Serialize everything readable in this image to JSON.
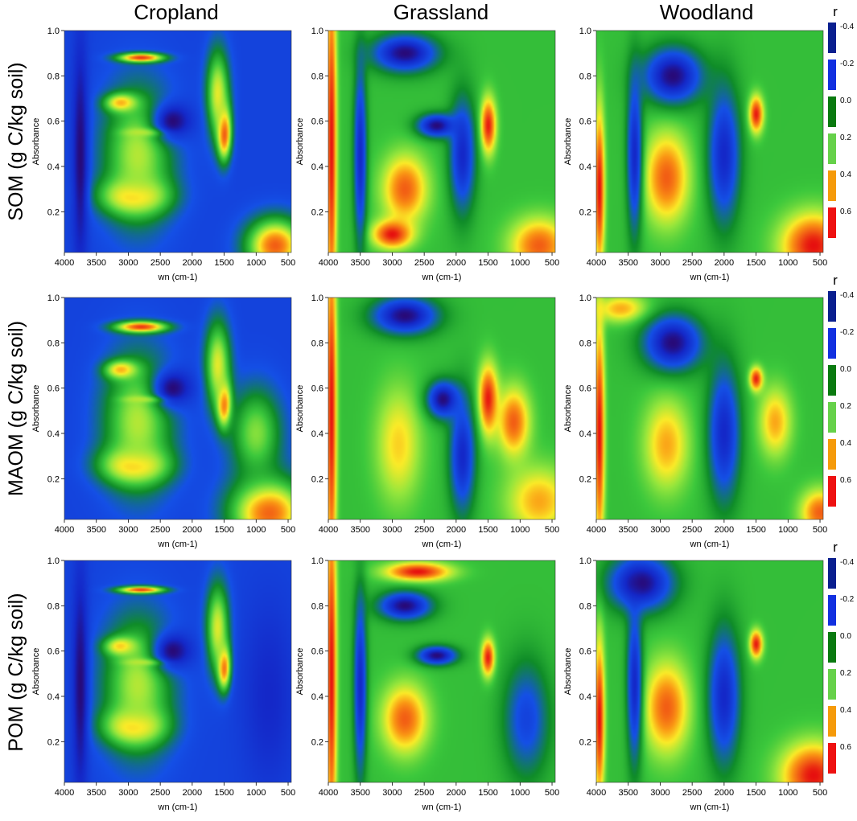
{
  "figure": {
    "column_titles": [
      "Cropland",
      "Grassland",
      "Woodland"
    ],
    "row_titles": [
      "SOM (g C/kg soil)",
      "MAOM (g C/kg soil)",
      "POM (g C/kg soil)"
    ],
    "colorbar": {
      "title": "r",
      "tick_labels": [
        "-0.4",
        "-0.2",
        "0.0",
        "0.2",
        "0.4",
        "0.6"
      ],
      "colors": [
        "#0a1f8f",
        "#1230e0",
        "#0a7a10",
        "#66d14a",
        "#f59a0a",
        "#ee1111"
      ]
    }
  },
  "chart_data": [
    {
      "type": "heatmap",
      "panel": "SOM-Cropland",
      "title": "",
      "xlabel": "wn (cm-1)",
      "ylabel": "Absorbance",
      "xlim": [
        4000,
        450
      ],
      "ylim": [
        0.02,
        1.0
      ],
      "x_ticks": [
        4000,
        3500,
        3000,
        2500,
        2000,
        1500,
        1000,
        500
      ],
      "x_tick_labels": [
        "4000",
        "3500",
        "3000",
        "2500",
        "2000",
        "1500",
        "1000",
        "500"
      ],
      "y_ticks": [
        0.2,
        0.4,
        0.6,
        0.8,
        1.0
      ],
      "y_tick_labels": [
        "0.2",
        "0.4",
        "0.6",
        "0.8",
        "1.0"
      ],
      "value_range": [
        -0.4,
        0.6
      ],
      "background_r": -0.2,
      "features": [
        {
          "x": 1500,
          "y": 0.55,
          "sx": 110,
          "sy": 0.12,
          "r": 0.6
        },
        {
          "x": 1600,
          "y": 0.72,
          "sx": 180,
          "sy": 0.2,
          "r": 0.3
        },
        {
          "x": 2800,
          "y": 0.88,
          "sx": 350,
          "sy": 0.02,
          "r": 0.6
        },
        {
          "x": 2700,
          "y": 0.55,
          "sx": 300,
          "sy": 0.018,
          "r": 0.6
        },
        {
          "x": 2900,
          "y": 0.27,
          "sx": 500,
          "sy": 0.08,
          "r": 0.5
        },
        {
          "x": 3100,
          "y": 0.68,
          "sx": 250,
          "sy": 0.04,
          "r": 0.5
        },
        {
          "x": 2850,
          "y": 0.45,
          "sx": 550,
          "sy": 0.3,
          "r": 0.25
        },
        {
          "x": 2300,
          "y": 0.6,
          "sx": 300,
          "sy": 0.08,
          "r": -0.4
        },
        {
          "x": 700,
          "y": 0.05,
          "sx": 450,
          "sy": 0.12,
          "r": 0.5
        },
        {
          "x": 3750,
          "y": 0.45,
          "sx": 120,
          "sy": 0.5,
          "r": -0.4
        }
      ]
    },
    {
      "type": "heatmap",
      "panel": "SOM-Grassland",
      "title": "",
      "xlabel": "wn (cm-1)",
      "ylabel": "Absorbance",
      "xlim": [
        4000,
        450
      ],
      "ylim": [
        0.02,
        1.0
      ],
      "x_ticks": [
        4000,
        3500,
        3000,
        2500,
        2000,
        1500,
        1000,
        500
      ],
      "x_tick_labels": [
        "4000",
        "3500",
        "3000",
        "2500",
        "2000",
        "1500",
        "1000",
        "500"
      ],
      "y_ticks": [
        0.2,
        0.4,
        0.6,
        0.8,
        1.0
      ],
      "y_tick_labels": [
        "0.2",
        "0.4",
        "0.6",
        "0.8",
        "1.0"
      ],
      "value_range": [
        -0.4,
        0.6
      ],
      "background_r": 0.1,
      "features": [
        {
          "x": 3950,
          "y": 0.5,
          "sx": 80,
          "sy": 0.8,
          "r": 0.6
        },
        {
          "x": 2800,
          "y": 0.3,
          "sx": 350,
          "sy": 0.15,
          "r": 0.5
        },
        {
          "x": 1500,
          "y": 0.58,
          "sx": 120,
          "sy": 0.12,
          "r": 0.6
        },
        {
          "x": 3000,
          "y": 0.1,
          "sx": 300,
          "sy": 0.06,
          "r": 0.6
        },
        {
          "x": 2800,
          "y": 0.9,
          "sx": 500,
          "sy": 0.08,
          "r": -0.4
        },
        {
          "x": 2300,
          "y": 0.58,
          "sx": 300,
          "sy": 0.05,
          "r": -0.4
        },
        {
          "x": 3500,
          "y": 0.45,
          "sx": 100,
          "sy": 0.4,
          "r": -0.3
        },
        {
          "x": 1900,
          "y": 0.45,
          "sx": 200,
          "sy": 0.25,
          "r": -0.3
        },
        {
          "x": 700,
          "y": 0.05,
          "sx": 450,
          "sy": 0.12,
          "r": 0.5
        }
      ]
    },
    {
      "type": "heatmap",
      "panel": "SOM-Woodland",
      "title": "",
      "xlabel": "wn (cm-1)",
      "ylabel": "Absorbance",
      "xlim": [
        4000,
        450
      ],
      "ylim": [
        0.02,
        1.0
      ],
      "x_ticks": [
        4000,
        3500,
        3000,
        2500,
        2000,
        1500,
        1000,
        500
      ],
      "x_tick_labels": [
        "4000",
        "3500",
        "3000",
        "2500",
        "2000",
        "1500",
        "1000",
        "500"
      ],
      "y_ticks": [
        0.2,
        0.4,
        0.6,
        0.8,
        1.0
      ],
      "y_tick_labels": [
        "0.2",
        "0.4",
        "0.6",
        "0.8",
        "1.0"
      ],
      "value_range": [
        -0.4,
        0.6
      ],
      "background_r": 0.1,
      "features": [
        {
          "x": 3950,
          "y": 0.3,
          "sx": 80,
          "sy": 0.35,
          "r": 0.6
        },
        {
          "x": 1500,
          "y": 0.63,
          "sx": 110,
          "sy": 0.08,
          "r": 0.6
        },
        {
          "x": 2900,
          "y": 0.35,
          "sx": 350,
          "sy": 0.2,
          "r": 0.5
        },
        {
          "x": 2800,
          "y": 0.8,
          "sx": 450,
          "sy": 0.12,
          "r": -0.4
        },
        {
          "x": 2000,
          "y": 0.45,
          "sx": 250,
          "sy": 0.3,
          "r": -0.3
        },
        {
          "x": 3400,
          "y": 0.45,
          "sx": 120,
          "sy": 0.35,
          "r": -0.3
        },
        {
          "x": 600,
          "y": 0.05,
          "sx": 500,
          "sy": 0.14,
          "r": 0.6
        }
      ]
    },
    {
      "type": "heatmap",
      "panel": "MAOM-Cropland",
      "title": "",
      "xlabel": "wn (cm-1)",
      "ylabel": "Absorbance",
      "xlim": [
        4000,
        450
      ],
      "ylim": [
        0.02,
        1.0
      ],
      "x_ticks": [
        4000,
        3500,
        3000,
        2500,
        2000,
        1500,
        1000,
        500
      ],
      "x_tick_labels": [
        "4000",
        "3500",
        "3000",
        "2500",
        "2000",
        "1500",
        "1000",
        "500"
      ],
      "y_ticks": [
        0.2,
        0.4,
        0.6,
        0.8,
        1.0
      ],
      "y_tick_labels": [
        "0.2",
        "0.4",
        "0.6",
        "0.8",
        "1.0"
      ],
      "value_range": [
        -0.4,
        0.6
      ],
      "background_r": -0.2,
      "features": [
        {
          "x": 1500,
          "y": 0.53,
          "sx": 110,
          "sy": 0.1,
          "r": 0.6
        },
        {
          "x": 1600,
          "y": 0.7,
          "sx": 200,
          "sy": 0.2,
          "r": 0.3
        },
        {
          "x": 2800,
          "y": 0.87,
          "sx": 400,
          "sy": 0.025,
          "r": 0.6
        },
        {
          "x": 2700,
          "y": 0.55,
          "sx": 300,
          "sy": 0.015,
          "r": 0.6
        },
        {
          "x": 2900,
          "y": 0.26,
          "sx": 500,
          "sy": 0.08,
          "r": 0.5
        },
        {
          "x": 3100,
          "y": 0.68,
          "sx": 250,
          "sy": 0.04,
          "r": 0.5
        },
        {
          "x": 2850,
          "y": 0.45,
          "sx": 550,
          "sy": 0.3,
          "r": 0.25
        },
        {
          "x": 2300,
          "y": 0.6,
          "sx": 300,
          "sy": 0.08,
          "r": -0.4
        },
        {
          "x": 800,
          "y": 0.05,
          "sx": 600,
          "sy": 0.15,
          "r": 0.5
        },
        {
          "x": 1000,
          "y": 0.4,
          "sx": 400,
          "sy": 0.2,
          "r": 0.2
        }
      ]
    },
    {
      "type": "heatmap",
      "panel": "MAOM-Grassland",
      "title": "",
      "xlabel": "wn (cm-1)",
      "ylabel": "Absorbance",
      "xlim": [
        4000,
        450
      ],
      "ylim": [
        0.02,
        1.0
      ],
      "x_ticks": [
        4000,
        3500,
        3000,
        2500,
        2000,
        1500,
        1000,
        500
      ],
      "x_tick_labels": [
        "4000",
        "3500",
        "3000",
        "2500",
        "2000",
        "1500",
        "1000",
        "500"
      ],
      "y_ticks": [
        0.2,
        0.4,
        0.6,
        0.8,
        1.0
      ],
      "y_tick_labels": [
        "0.2",
        "0.4",
        "0.6",
        "0.8",
        "1.0"
      ],
      "value_range": [
        -0.4,
        0.6
      ],
      "background_r": 0.1,
      "features": [
        {
          "x": 3950,
          "y": 0.5,
          "sx": 80,
          "sy": 0.8,
          "r": 0.6
        },
        {
          "x": 2900,
          "y": 0.35,
          "sx": 350,
          "sy": 0.25,
          "r": 0.35
        },
        {
          "x": 1500,
          "y": 0.55,
          "sx": 150,
          "sy": 0.15,
          "r": 0.6
        },
        {
          "x": 1100,
          "y": 0.45,
          "sx": 250,
          "sy": 0.15,
          "r": 0.5
        },
        {
          "x": 2800,
          "y": 0.92,
          "sx": 500,
          "sy": 0.08,
          "r": -0.4
        },
        {
          "x": 2200,
          "y": 0.55,
          "sx": 250,
          "sy": 0.08,
          "r": -0.4
        },
        {
          "x": 1900,
          "y": 0.3,
          "sx": 200,
          "sy": 0.25,
          "r": -0.3
        },
        {
          "x": 700,
          "y": 0.1,
          "sx": 500,
          "sy": 0.15,
          "r": 0.4
        }
      ]
    },
    {
      "type": "heatmap",
      "panel": "MAOM-Woodland",
      "title": "",
      "xlabel": "wn (cm-1)",
      "ylabel": "Absorbance",
      "xlim": [
        4000,
        450
      ],
      "ylim": [
        0.02,
        1.0
      ],
      "x_ticks": [
        4000,
        3500,
        3000,
        2500,
        2000,
        1500,
        1000,
        500
      ],
      "x_tick_labels": [
        "4000",
        "3500",
        "3000",
        "2500",
        "2000",
        "1500",
        "1000",
        "500"
      ],
      "y_ticks": [
        0.2,
        0.4,
        0.6,
        0.8,
        1.0
      ],
      "y_tick_labels": [
        "0.2",
        "0.4",
        "0.6",
        "0.8",
        "1.0"
      ],
      "value_range": [
        -0.4,
        0.6
      ],
      "background_r": 0.1,
      "features": [
        {
          "x": 3950,
          "y": 0.4,
          "sx": 80,
          "sy": 0.5,
          "r": 0.6
        },
        {
          "x": 3600,
          "y": 0.95,
          "sx": 400,
          "sy": 0.06,
          "r": 0.4
        },
        {
          "x": 1500,
          "y": 0.64,
          "sx": 100,
          "sy": 0.05,
          "r": 0.6
        },
        {
          "x": 1200,
          "y": 0.45,
          "sx": 250,
          "sy": 0.15,
          "r": 0.4
        },
        {
          "x": 2900,
          "y": 0.35,
          "sx": 350,
          "sy": 0.2,
          "r": 0.4
        },
        {
          "x": 2800,
          "y": 0.8,
          "sx": 450,
          "sy": 0.12,
          "r": -0.4
        },
        {
          "x": 2000,
          "y": 0.4,
          "sx": 250,
          "sy": 0.3,
          "r": -0.3
        },
        {
          "x": 500,
          "y": 0.05,
          "sx": 300,
          "sy": 0.1,
          "r": 0.5
        }
      ]
    },
    {
      "type": "heatmap",
      "panel": "POM-Cropland",
      "title": "",
      "xlabel": "wn (cm-1)",
      "ylabel": "Absorbance",
      "xlim": [
        4000,
        450
      ],
      "ylim": [
        0.02,
        1.0
      ],
      "x_ticks": [
        4000,
        3500,
        3000,
        2500,
        2000,
        1500,
        1000,
        500
      ],
      "x_tick_labels": [
        "4000",
        "3500",
        "3000",
        "2500",
        "2000",
        "1500",
        "1000",
        "500"
      ],
      "y_ticks": [
        0.2,
        0.4,
        0.6,
        0.8,
        1.0
      ],
      "y_tick_labels": [
        "0.2",
        "0.4",
        "0.6",
        "0.8",
        "1.0"
      ],
      "value_range": [
        -0.4,
        0.6
      ],
      "background_r": -0.2,
      "features": [
        {
          "x": 1500,
          "y": 0.53,
          "sx": 100,
          "sy": 0.1,
          "r": 0.6
        },
        {
          "x": 1600,
          "y": 0.7,
          "sx": 180,
          "sy": 0.2,
          "r": 0.3
        },
        {
          "x": 2800,
          "y": 0.87,
          "sx": 350,
          "sy": 0.015,
          "r": 0.6
        },
        {
          "x": 2700,
          "y": 0.55,
          "sx": 300,
          "sy": 0.015,
          "r": 0.6
        },
        {
          "x": 2900,
          "y": 0.27,
          "sx": 450,
          "sy": 0.08,
          "r": 0.5
        },
        {
          "x": 3100,
          "y": 0.62,
          "sx": 250,
          "sy": 0.04,
          "r": 0.5
        },
        {
          "x": 2850,
          "y": 0.45,
          "sx": 550,
          "sy": 0.3,
          "r": 0.25
        },
        {
          "x": 2300,
          "y": 0.6,
          "sx": 300,
          "sy": 0.08,
          "r": -0.4
        },
        {
          "x": 3750,
          "y": 0.45,
          "sx": 120,
          "sy": 0.5,
          "r": -0.4
        },
        {
          "x": 800,
          "y": 0.4,
          "sx": 400,
          "sy": 0.4,
          "r": -0.3
        }
      ]
    },
    {
      "type": "heatmap",
      "panel": "POM-Grassland",
      "title": "",
      "xlabel": "wn (cm-1)",
      "ylabel": "Absorbance",
      "xlim": [
        4000,
        450
      ],
      "ylim": [
        0.02,
        1.0
      ],
      "x_ticks": [
        4000,
        3500,
        3000,
        2500,
        2000,
        1500,
        1000,
        500
      ],
      "x_tick_labels": [
        "4000",
        "3500",
        "3000",
        "2500",
        "2000",
        "1500",
        "1000",
        "500"
      ],
      "y_ticks": [
        0.2,
        0.4,
        0.6,
        0.8,
        1.0
      ],
      "y_tick_labels": [
        "0.2",
        "0.4",
        "0.6",
        "0.8",
        "1.0"
      ],
      "value_range": [
        -0.4,
        0.6
      ],
      "background_r": 0.1,
      "features": [
        {
          "x": 3950,
          "y": 0.5,
          "sx": 80,
          "sy": 0.8,
          "r": 0.6
        },
        {
          "x": 2800,
          "y": 0.3,
          "sx": 350,
          "sy": 0.15,
          "r": 0.5
        },
        {
          "x": 1500,
          "y": 0.57,
          "sx": 100,
          "sy": 0.08,
          "r": 0.6
        },
        {
          "x": 2600,
          "y": 0.95,
          "sx": 500,
          "sy": 0.04,
          "r": 0.6
        },
        {
          "x": 2800,
          "y": 0.8,
          "sx": 400,
          "sy": 0.06,
          "r": -0.4
        },
        {
          "x": 2300,
          "y": 0.58,
          "sx": 300,
          "sy": 0.04,
          "r": -0.4
        },
        {
          "x": 3500,
          "y": 0.45,
          "sx": 100,
          "sy": 0.4,
          "r": -0.3
        },
        {
          "x": 900,
          "y": 0.3,
          "sx": 350,
          "sy": 0.25,
          "r": -0.2
        }
      ]
    },
    {
      "type": "heatmap",
      "panel": "POM-Woodland",
      "title": "",
      "xlabel": "wn (cm-1)",
      "ylabel": "Absorbance",
      "xlim": [
        4000,
        450
      ],
      "ylim": [
        0.02,
        1.0
      ],
      "x_ticks": [
        4000,
        3500,
        3000,
        2500,
        2000,
        1500,
        1000,
        500
      ],
      "x_tick_labels": [
        "4000",
        "3500",
        "3000",
        "2500",
        "2000",
        "1500",
        "1000",
        "500"
      ],
      "y_ticks": [
        0.2,
        0.4,
        0.6,
        0.8,
        1.0
      ],
      "y_tick_labels": [
        "0.2",
        "0.4",
        "0.6",
        "0.8",
        "1.0"
      ],
      "value_range": [
        -0.4,
        0.6
      ],
      "background_r": 0.1,
      "features": [
        {
          "x": 3950,
          "y": 0.3,
          "sx": 80,
          "sy": 0.35,
          "r": 0.6
        },
        {
          "x": 1500,
          "y": 0.63,
          "sx": 100,
          "sy": 0.06,
          "r": 0.6
        },
        {
          "x": 2900,
          "y": 0.35,
          "sx": 350,
          "sy": 0.2,
          "r": 0.5
        },
        {
          "x": 3300,
          "y": 0.9,
          "sx": 500,
          "sy": 0.12,
          "r": -0.4
        },
        {
          "x": 2000,
          "y": 0.4,
          "sx": 250,
          "sy": 0.3,
          "r": -0.3
        },
        {
          "x": 3400,
          "y": 0.45,
          "sx": 120,
          "sy": 0.35,
          "r": -0.3
        },
        {
          "x": 600,
          "y": 0.05,
          "sx": 500,
          "sy": 0.14,
          "r": 0.6
        }
      ]
    }
  ]
}
